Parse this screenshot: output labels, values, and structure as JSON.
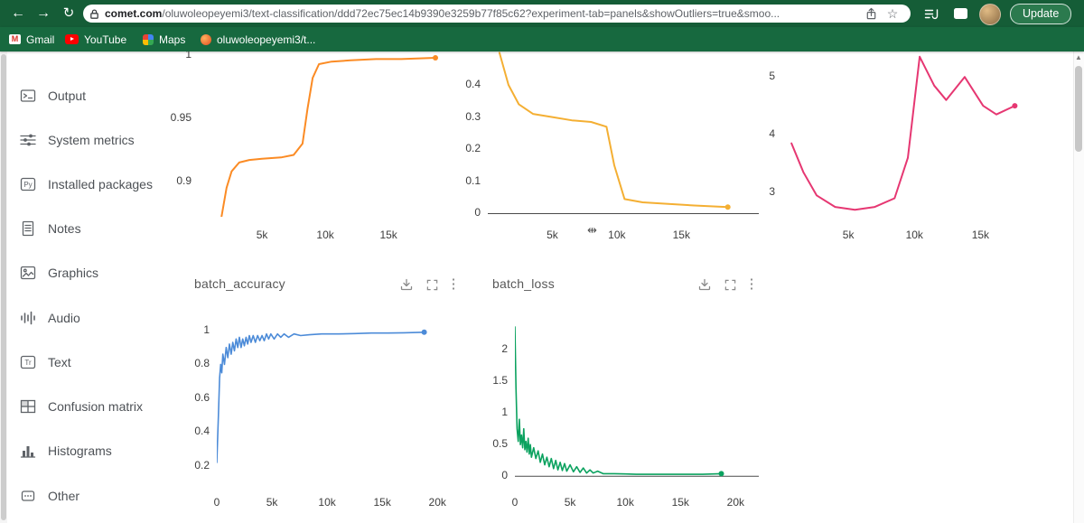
{
  "browser": {
    "url": {
      "domain": "comet.com",
      "path": "/oluwoleopeyemi3/text-classification/ddd72ec75ec14b9390e3259b77f85c62?experiment-tab=panels&showOutliers=true&smoo..."
    },
    "update_label": "Update",
    "bookmarks": [
      "Gmail",
      "YouTube",
      "Maps",
      "oluwoleopeyemi3/t..."
    ]
  },
  "icons": {
    "back": "←",
    "forward": "→",
    "reload": "↻",
    "star": "☆",
    "kebab": "⋮",
    "scroll_up": "▲",
    "cursor": "⇹",
    "py": "Py",
    "tr": "Tr"
  },
  "sidebar": {
    "items": [
      {
        "label": "Output"
      },
      {
        "label": "System metrics"
      },
      {
        "label": "Installed packages"
      },
      {
        "label": "Notes"
      },
      {
        "label": "Graphics"
      },
      {
        "label": "Audio"
      },
      {
        "label": "Text"
      },
      {
        "label": "Confusion matrix"
      },
      {
        "label": "Histograms"
      },
      {
        "label": "Other"
      }
    ]
  },
  "panels": [
    {
      "title": "batch_accuracy"
    },
    {
      "title": "batch_loss"
    }
  ],
  "chart_data": [
    {
      "type": "line",
      "color": "#fb8b24",
      "stroke": 2,
      "end_dot": true,
      "axis_y0": false,
      "xlim": [
        0,
        20700
      ],
      "ylim": [
        0.872,
        1.003
      ],
      "xticks": [
        {
          "v": 5000,
          "label": "5k"
        },
        {
          "v": 10000,
          "label": "10k"
        },
        {
          "v": 15000,
          "label": "15k"
        }
      ],
      "yticks": [
        {
          "v": 0.9,
          "label": "0.9"
        },
        {
          "v": 0.95,
          "label": "0.95"
        },
        {
          "v": 1,
          "label": "1"
        }
      ],
      "points": [
        [
          1800,
          0.872
        ],
        [
          2200,
          0.895
        ],
        [
          2600,
          0.908
        ],
        [
          3200,
          0.915
        ],
        [
          4000,
          0.917
        ],
        [
          5000,
          0.918
        ],
        [
          6500,
          0.919
        ],
        [
          7500,
          0.921
        ],
        [
          8200,
          0.93
        ],
        [
          8600,
          0.958
        ],
        [
          9000,
          0.982
        ],
        [
          9500,
          0.993
        ],
        [
          10500,
          0.995
        ],
        [
          12000,
          0.996
        ],
        [
          14000,
          0.997
        ],
        [
          16000,
          0.997
        ],
        [
          18700,
          0.998
        ]
      ]
    },
    {
      "type": "line",
      "color": "#f4af33",
      "stroke": 2,
      "end_dot": true,
      "axis_y0": true,
      "xlim": [
        0,
        21000
      ],
      "ylim": [
        -0.01,
        0.504
      ],
      "xticks": [
        {
          "v": 5000,
          "label": "5k"
        },
        {
          "v": 10000,
          "label": "10k"
        },
        {
          "v": 15000,
          "label": "15k"
        }
      ],
      "yticks": [
        {
          "v": 0,
          "label": "0"
        },
        {
          "v": 0.1,
          "label": "0.1"
        },
        {
          "v": 0.2,
          "label": "0.2"
        },
        {
          "v": 0.3,
          "label": "0.3"
        },
        {
          "v": 0.4,
          "label": "0.4"
        }
      ],
      "points": [
        [
          900,
          0.5
        ],
        [
          1600,
          0.4
        ],
        [
          2400,
          0.34
        ],
        [
          3500,
          0.31
        ],
        [
          5000,
          0.3
        ],
        [
          6500,
          0.29
        ],
        [
          8000,
          0.285
        ],
        [
          9200,
          0.27
        ],
        [
          9800,
          0.15
        ],
        [
          10600,
          0.045
        ],
        [
          12000,
          0.035
        ],
        [
          14000,
          0.03
        ],
        [
          16000,
          0.025
        ],
        [
          18600,
          0.02
        ]
      ]
    },
    {
      "type": "line",
      "color": "#e63772",
      "stroke": 2,
      "end_dot": true,
      "axis_y0": false,
      "xlim": [
        0,
        20100
      ],
      "ylim": [
        2.58,
        5.44
      ],
      "xticks": [
        {
          "v": 5000,
          "label": "5k"
        },
        {
          "v": 10000,
          "label": "10k"
        },
        {
          "v": 15000,
          "label": "15k"
        }
      ],
      "yticks": [
        {
          "v": 3,
          "label": "3"
        },
        {
          "v": 4,
          "label": "4"
        },
        {
          "v": 5,
          "label": "5"
        }
      ],
      "points": [
        [
          700,
          3.85
        ],
        [
          1600,
          3.35
        ],
        [
          2600,
          2.95
        ],
        [
          4000,
          2.75
        ],
        [
          5500,
          2.7
        ],
        [
          7000,
          2.75
        ],
        [
          8500,
          2.9
        ],
        [
          9500,
          3.6
        ],
        [
          10400,
          5.35
        ],
        [
          11500,
          4.85
        ],
        [
          12400,
          4.6
        ],
        [
          13800,
          5.0
        ],
        [
          15200,
          4.5
        ],
        [
          16200,
          4.35
        ],
        [
          17600,
          4.5
        ]
      ]
    },
    {
      "type": "line",
      "color": "#4c8bd8",
      "stroke": 1.6,
      "end_dot": true,
      "axis_y0": false,
      "xlim": [
        0,
        21700
      ],
      "ylim": [
        0.14,
        1.085
      ],
      "xticks": [
        {
          "v": 0,
          "label": "0"
        },
        {
          "v": 5000,
          "label": "5k"
        },
        {
          "v": 10000,
          "label": "10k"
        },
        {
          "v": 15000,
          "label": "15k"
        },
        {
          "v": 20000,
          "label": "20k"
        }
      ],
      "yticks": [
        {
          "v": 0.2,
          "label": "0.2"
        },
        {
          "v": 0.4,
          "label": "0.4"
        },
        {
          "v": 0.6,
          "label": "0.6"
        },
        {
          "v": 0.8,
          "label": "0.8"
        },
        {
          "v": 1,
          "label": "1"
        }
      ],
      "points": [
        [
          0,
          0.22
        ],
        [
          150,
          0.5
        ],
        [
          250,
          0.72
        ],
        [
          350,
          0.8
        ],
        [
          450,
          0.75
        ],
        [
          550,
          0.86
        ],
        [
          700,
          0.8
        ],
        [
          850,
          0.9
        ],
        [
          1000,
          0.84
        ],
        [
          1150,
          0.92
        ],
        [
          1300,
          0.86
        ],
        [
          1450,
          0.93
        ],
        [
          1600,
          0.88
        ],
        [
          1750,
          0.95
        ],
        [
          1900,
          0.9
        ],
        [
          2050,
          0.96
        ],
        [
          2200,
          0.9
        ],
        [
          2350,
          0.95
        ],
        [
          2500,
          0.91
        ],
        [
          2650,
          0.96
        ],
        [
          2800,
          0.92
        ],
        [
          2950,
          0.97
        ],
        [
          3100,
          0.93
        ],
        [
          3300,
          0.97
        ],
        [
          3500,
          0.93
        ],
        [
          3700,
          0.97
        ],
        [
          3900,
          0.94
        ],
        [
          4100,
          0.97
        ],
        [
          4300,
          0.94
        ],
        [
          4500,
          0.98
        ],
        [
          4700,
          0.95
        ],
        [
          4900,
          0.98
        ],
        [
          5200,
          0.95
        ],
        [
          5500,
          0.98
        ],
        [
          5800,
          0.96
        ],
        [
          6100,
          0.98
        ],
        [
          6500,
          0.96
        ],
        [
          7000,
          0.98
        ],
        [
          7600,
          0.97
        ],
        [
          8400,
          0.975
        ],
        [
          9500,
          0.98
        ],
        [
          11000,
          0.98
        ],
        [
          12500,
          0.982
        ],
        [
          14000,
          0.985
        ],
        [
          15500,
          0.985
        ],
        [
          17000,
          0.987
        ],
        [
          18800,
          0.99
        ]
      ]
    },
    {
      "type": "line",
      "color": "#0ba25f",
      "stroke": 1.6,
      "end_dot": true,
      "axis_y0": true,
      "xlim": [
        0,
        22100
      ],
      "ylim": [
        -0.04,
        2.53
      ],
      "xticks": [
        {
          "v": 0,
          "label": "0"
        },
        {
          "v": 5000,
          "label": "5k"
        },
        {
          "v": 10000,
          "label": "10k"
        },
        {
          "v": 15000,
          "label": "15k"
        },
        {
          "v": 20000,
          "label": "20k"
        }
      ],
      "yticks": [
        {
          "v": 0,
          "label": "0"
        },
        {
          "v": 0.5,
          "label": "0.5"
        },
        {
          "v": 1,
          "label": "1"
        },
        {
          "v": 1.5,
          "label": "1.5"
        },
        {
          "v": 2,
          "label": "2"
        }
      ],
      "points": [
        [
          0,
          2.36
        ],
        [
          100,
          1.4
        ],
        [
          200,
          0.75
        ],
        [
          300,
          0.55
        ],
        [
          400,
          0.9
        ],
        [
          500,
          0.5
        ],
        [
          600,
          0.65
        ],
        [
          700,
          0.45
        ],
        [
          800,
          0.75
        ],
        [
          900,
          0.42
        ],
        [
          1000,
          0.55
        ],
        [
          1100,
          0.38
        ],
        [
          1200,
          0.6
        ],
        [
          1300,
          0.35
        ],
        [
          1400,
          0.5
        ],
        [
          1500,
          0.3
        ],
        [
          1700,
          0.45
        ],
        [
          1900,
          0.28
        ],
        [
          2100,
          0.4
        ],
        [
          2300,
          0.22
        ],
        [
          2500,
          0.35
        ],
        [
          2700,
          0.18
        ],
        [
          2900,
          0.3
        ],
        [
          3100,
          0.15
        ],
        [
          3300,
          0.28
        ],
        [
          3500,
          0.12
        ],
        [
          3700,
          0.25
        ],
        [
          3900,
          0.1
        ],
        [
          4100,
          0.22
        ],
        [
          4300,
          0.09
        ],
        [
          4500,
          0.2
        ],
        [
          4700,
          0.08
        ],
        [
          5000,
          0.18
        ],
        [
          5300,
          0.07
        ],
        [
          5600,
          0.15
        ],
        [
          5900,
          0.06
        ],
        [
          6200,
          0.13
        ],
        [
          6500,
          0.05
        ],
        [
          6800,
          0.1
        ],
        [
          7100,
          0.05
        ],
        [
          7500,
          0.08
        ],
        [
          8000,
          0.04
        ],
        [
          9000,
          0.04
        ],
        [
          10000,
          0.035
        ],
        [
          11000,
          0.03
        ],
        [
          12500,
          0.03
        ],
        [
          14000,
          0.03
        ],
        [
          15500,
          0.03
        ],
        [
          17000,
          0.03
        ],
        [
          18700,
          0.04
        ]
      ]
    }
  ]
}
